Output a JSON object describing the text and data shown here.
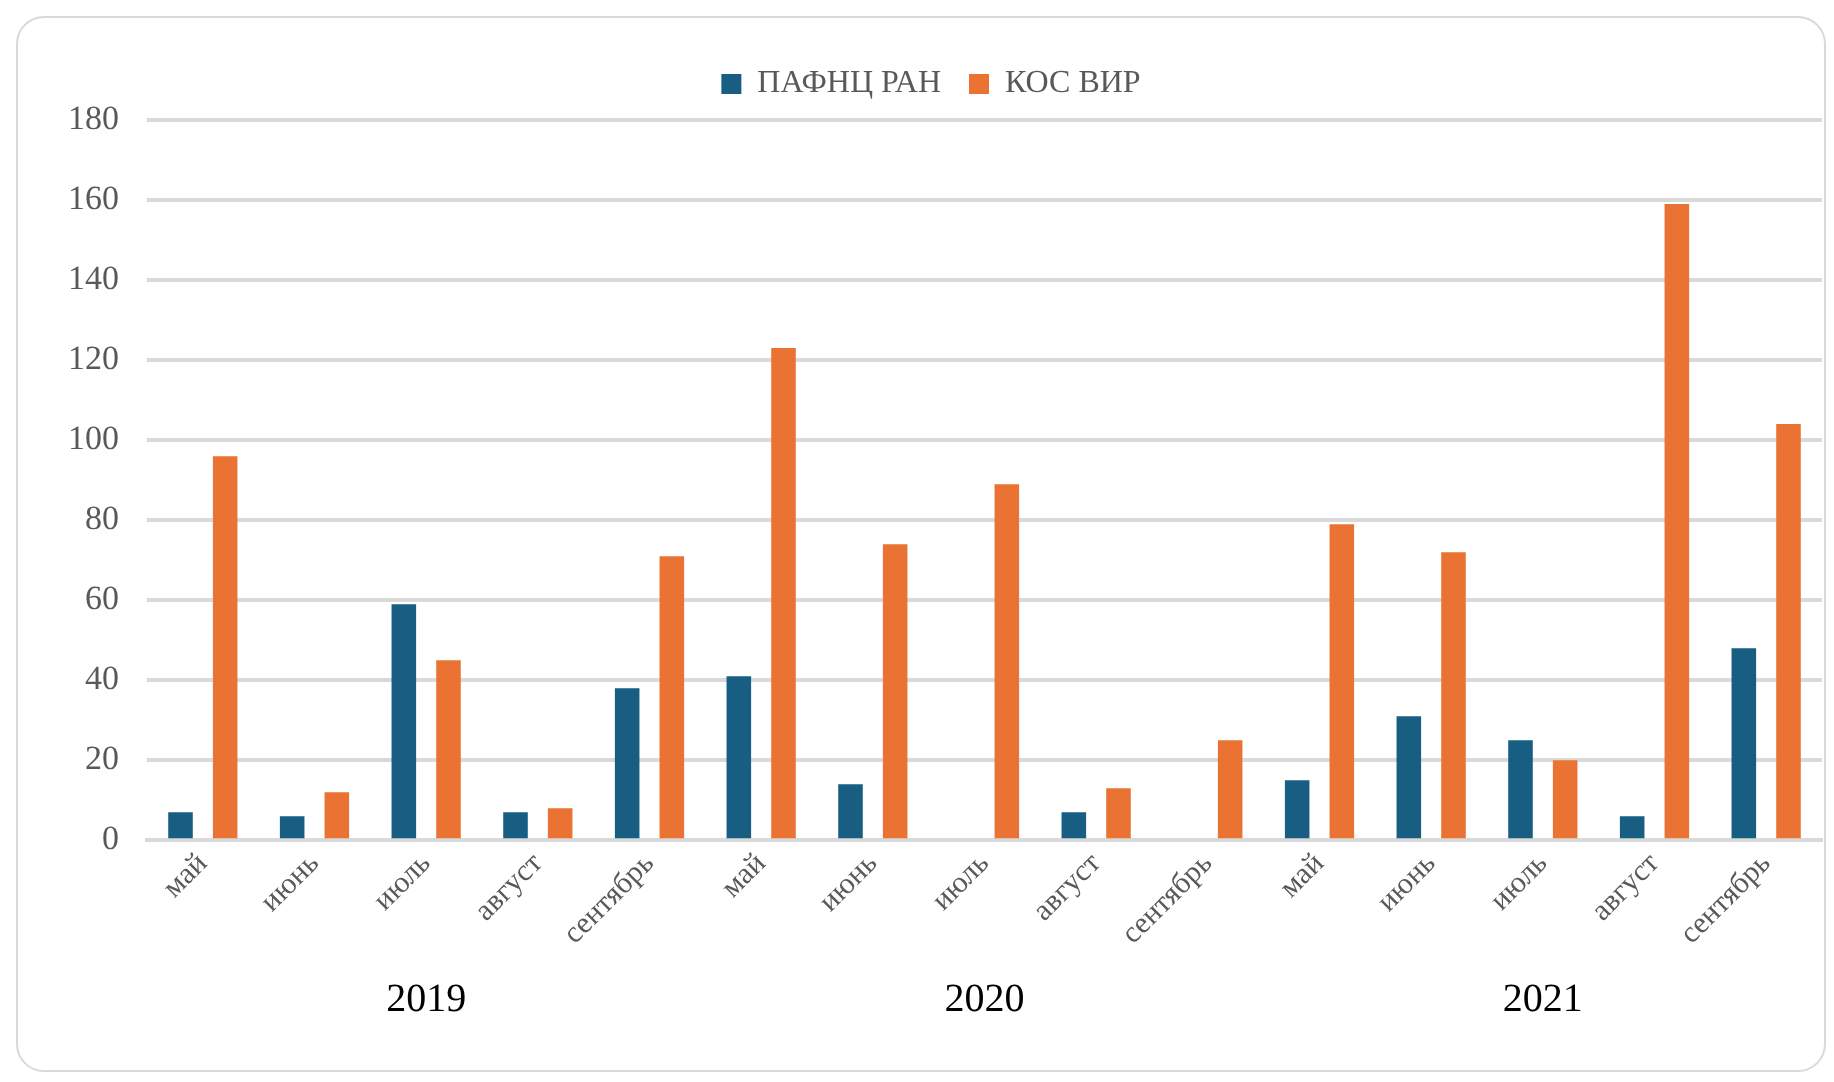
{
  "chart_data": {
    "type": "bar",
    "categories": [
      "май",
      "июнь",
      "июль",
      "август",
      "сентябрь",
      "май",
      "июнь",
      "июль",
      "август",
      "сентябрь",
      "май",
      "июнь",
      "июль",
      "август",
      "сентябрь"
    ],
    "series": [
      {
        "name": "ПАФНЦ РАН",
        "color": "#175e82",
        "values": [
          7,
          6,
          59,
          7,
          38,
          41,
          14,
          null,
          7,
          null,
          15,
          31,
          25,
          6,
          48
        ]
      },
      {
        "name": "КОС ВИР",
        "color": "#ea7334",
        "values": [
          96,
          12,
          45,
          8,
          71,
          123,
          74,
          89,
          13,
          25,
          79,
          72,
          20,
          159,
          104
        ]
      }
    ],
    "annotations": [
      "2019",
      "2020",
      "2021"
    ],
    "ylim": [
      0,
      180
    ],
    "yticks": [
      0,
      20,
      40,
      60,
      80,
      100,
      120,
      140,
      160,
      180
    ],
    "grid": "y",
    "legend": "top"
  }
}
